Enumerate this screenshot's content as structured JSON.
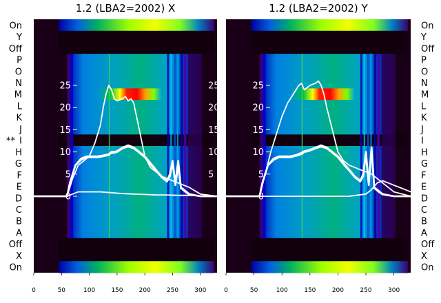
{
  "chart_data": [
    {
      "type": "heatmap",
      "title": "1.2 (LBA2=2002) X",
      "xlim": [
        0,
        330
      ],
      "x_ticks": [
        "0",
        "50",
        "100",
        "150",
        "200",
        "250",
        "300"
      ],
      "ylim": [
        0,
        26
      ],
      "y_ticks": [
        "0",
        "5",
        "10",
        "15",
        "20",
        "25"
      ],
      "row_labels": [
        "On",
        "Y",
        "Off",
        "P",
        "O",
        "N",
        "M",
        "L",
        "K",
        "J",
        "I",
        "H",
        "G",
        "F",
        "E",
        "D",
        "C",
        "B",
        "A",
        "Off",
        "X",
        "On"
      ],
      "row_annotations": [
        {
          "row": "I",
          "text": "**"
        }
      ],
      "colormap": [
        "#1a0018",
        "#4a0060",
        "#0000c8",
        "#0090e0",
        "#00b0a0",
        "#00c040",
        "#c0ff00",
        "#ffff00",
        "#ff8000",
        "#ff0000"
      ],
      "series": [
        {
          "x": [
            0,
            60,
            65,
            75,
            85,
            95,
            105,
            115,
            125,
            135,
            140,
            145,
            150,
            160,
            170,
            180,
            190,
            200,
            210,
            220,
            230,
            240,
            245,
            250,
            255,
            260,
            265,
            270,
            275,
            280,
            300,
            330
          ],
          "y": [
            0,
            0,
            3,
            7,
            8.5,
            9,
            9,
            9,
            9.2,
            9.5,
            10,
            10,
            10.2,
            11,
            11.5,
            11,
            10,
            9,
            7.5,
            6,
            4.5,
            3.5,
            5,
            8,
            3,
            8,
            2,
            1.5,
            1,
            0.5,
            0,
            0
          ]
        },
        {
          "x": [
            0,
            60,
            65,
            75,
            85,
            95,
            105,
            115,
            125,
            135,
            140,
            145,
            150,
            160,
            170,
            180,
            190,
            200,
            210,
            220,
            230,
            240,
            245,
            250,
            255,
            260,
            265,
            270,
            275,
            280,
            300,
            330
          ],
          "y": [
            0,
            0,
            3,
            7,
            8.2,
            8.8,
            8.8,
            8.8,
            9,
            9.3,
            9.8,
            9.8,
            10,
            10.8,
            11.2,
            10.8,
            9.8,
            8.8,
            7.2,
            5.8,
            4.3,
            3.3,
            4.5,
            7.5,
            2.5,
            7,
            1.8,
            1.3,
            0.8,
            0.4,
            0,
            0
          ]
        },
        {
          "x": [
            0,
            60,
            70,
            80,
            90,
            100,
            110,
            120,
            125,
            130,
            135,
            140,
            145,
            150,
            160,
            165,
            170,
            175,
            180,
            190,
            200,
            210,
            220,
            230,
            240,
            250,
            260,
            270,
            280,
            300,
            330
          ],
          "y": [
            0,
            0,
            4,
            7,
            8,
            9,
            12,
            16,
            20,
            23,
            25,
            24,
            22,
            21.5,
            22,
            22.5,
            21.5,
            22,
            21,
            15,
            9,
            6.5,
            5.5,
            4.5,
            4,
            3.5,
            3,
            2.5,
            2,
            0.5,
            0
          ]
        },
        {
          "x": [
            0,
            60,
            70,
            80,
            100,
            120,
            140,
            160,
            180,
            200,
            220,
            240,
            260,
            280,
            300,
            330
          ],
          "y": [
            0,
            0,
            0.5,
            1,
            1,
            1,
            0.8,
            0.6,
            0.5,
            0.4,
            0.3,
            0.3,
            0.2,
            0.2,
            0.1,
            0
          ]
        }
      ]
    },
    {
      "type": "heatmap",
      "title": "1.2 (LBA2=2002) Y",
      "xlim": [
        0,
        330
      ],
      "x_ticks": [
        "0",
        "50",
        "100",
        "150",
        "200",
        "250",
        "300"
      ],
      "ylim": [
        0,
        26
      ],
      "y_ticks": [
        "0",
        "5",
        "10",
        "15",
        "20",
        "25"
      ],
      "row_labels": [
        "On",
        "Y",
        "Off",
        "P",
        "O",
        "N",
        "M",
        "L",
        "K",
        "J",
        "I",
        "H",
        "G",
        "F",
        "E",
        "D",
        "C",
        "B",
        "A",
        "Off",
        "X",
        "On"
      ],
      "colormap": [
        "#1a0018",
        "#4a0060",
        "#0000c8",
        "#0090e0",
        "#00b0a0",
        "#00c040",
        "#c0ff00",
        "#ffff00",
        "#ff8000",
        "#ff0000"
      ],
      "series": [
        {
          "x": [
            0,
            60,
            65,
            75,
            85,
            95,
            105,
            115,
            125,
            135,
            140,
            145,
            150,
            160,
            170,
            180,
            190,
            200,
            210,
            220,
            230,
            240,
            245,
            250,
            255,
            260,
            265,
            270,
            275,
            280,
            300,
            330
          ],
          "y": [
            0,
            0,
            3,
            7,
            8.5,
            9,
            9,
            9,
            9.3,
            9.8,
            10.2,
            10.3,
            10.5,
            11,
            11.5,
            11,
            10,
            9,
            7.5,
            6,
            4.5,
            3.5,
            5,
            10,
            3,
            11,
            2,
            1.5,
            1,
            0.5,
            0,
            0
          ]
        },
        {
          "x": [
            0,
            60,
            65,
            75,
            85,
            95,
            105,
            115,
            125,
            135,
            140,
            145,
            150,
            160,
            170,
            180,
            190,
            200,
            210,
            220,
            230,
            240,
            245,
            250,
            255,
            260,
            265,
            270,
            275,
            280,
            300,
            330
          ],
          "y": [
            0,
            0,
            3,
            7,
            8.2,
            8.8,
            8.8,
            8.8,
            9.1,
            9.5,
            10,
            10.1,
            10.3,
            10.8,
            11.2,
            10.8,
            9.8,
            8.8,
            7.2,
            5.8,
            4.3,
            3.3,
            4.5,
            9.5,
            2.5,
            10.5,
            1.8,
            1.3,
            0.8,
            0.4,
            0,
            0
          ]
        },
        {
          "x": [
            0,
            60,
            70,
            80,
            90,
            100,
            110,
            120,
            130,
            135,
            140,
            150,
            160,
            165,
            170,
            175,
            180,
            190,
            200,
            210,
            220,
            230,
            240,
            250,
            260,
            270,
            280,
            300,
            330
          ],
          "y": [
            0,
            0,
            5,
            10,
            14,
            18,
            21,
            23,
            25,
            25.5,
            24,
            25,
            25.5,
            26,
            25,
            23,
            20,
            15,
            10,
            8,
            7,
            6.5,
            6,
            5.5,
            5,
            4,
            3,
            1,
            0
          ]
        },
        {
          "x": [
            0,
            60,
            80,
            100,
            130,
            160,
            190,
            220,
            250,
            260,
            270,
            280,
            290,
            300,
            310,
            320,
            330
          ],
          "y": [
            0,
            0,
            0,
            0,
            0,
            0,
            0,
            0,
            0.5,
            1.5,
            3,
            3.5,
            3,
            2.5,
            2,
            1.5,
            1
          ]
        }
      ]
    }
  ]
}
